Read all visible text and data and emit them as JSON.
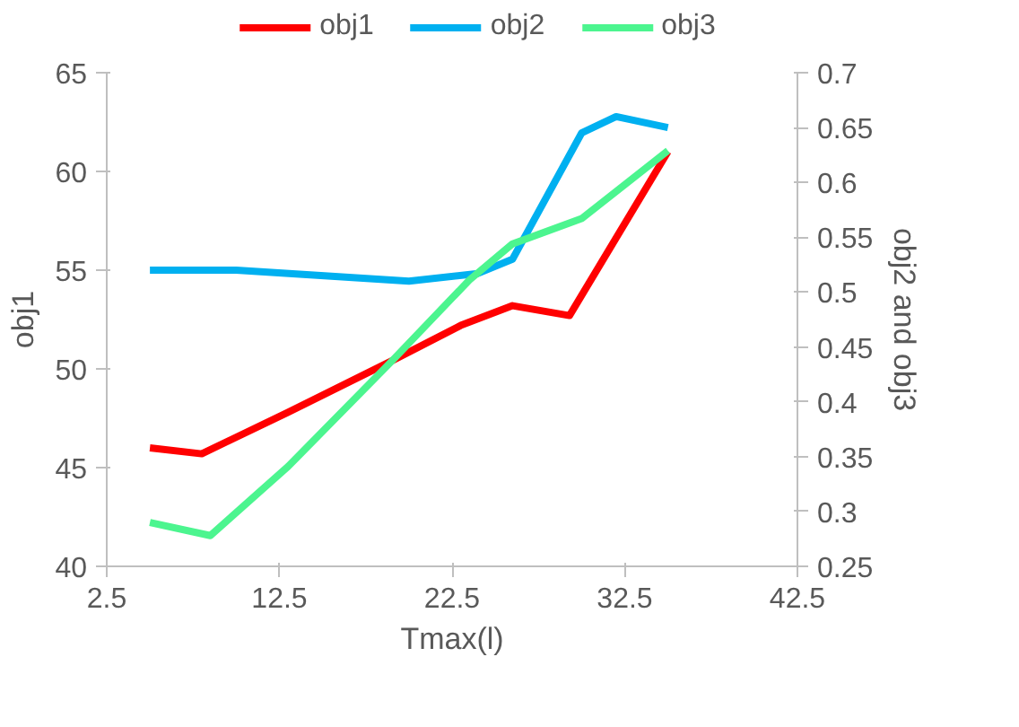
{
  "chart_data": {
    "type": "line",
    "xlabel": "Tmax(l)",
    "ylabel": "obj1",
    "y2label": "obj2 and obj3",
    "xlim": [
      2.5,
      42.5
    ],
    "xticks": [
      2.5,
      12.5,
      22.5,
      32.5,
      42.5
    ],
    "ylim": [
      40,
      65
    ],
    "yticks": [
      40,
      45,
      50,
      55,
      60,
      65
    ],
    "y2lim": [
      0.25,
      0.7
    ],
    "y2ticks": [
      0.25,
      0.3,
      0.35,
      0.4,
      0.45,
      0.5,
      0.55,
      0.6,
      0.65,
      0.7
    ],
    "grid": false,
    "legend": "top",
    "marker": "none",
    "line_style": "solid",
    "series": [
      {
        "name": "obj1",
        "color": "#ff0000",
        "x": [
          5,
          8,
          13,
          19,
          23,
          26,
          29.3,
          35
        ],
        "values": [
          46,
          45.7,
          47.8,
          50.4,
          52.2,
          53.2,
          52.7,
          61
        ]
      },
      {
        "name": "obj2",
        "color": "#00b0f0",
        "axis": "y2",
        "x": [
          5,
          10,
          20,
          24,
          26,
          30,
          32,
          35
        ],
        "values": [
          0.52,
          0.52,
          0.51,
          0.517,
          0.53,
          0.645,
          0.66,
          0.65
        ]
      },
      {
        "name": "obj3",
        "color": "#4cf58f",
        "axis": "y2",
        "x": [
          5,
          8.5,
          13,
          19,
          23.5,
          26,
          30,
          35
        ],
        "values": [
          0.29,
          0.278,
          0.341,
          0.437,
          0.511,
          0.544,
          0.567,
          0.629
        ]
      }
    ]
  }
}
